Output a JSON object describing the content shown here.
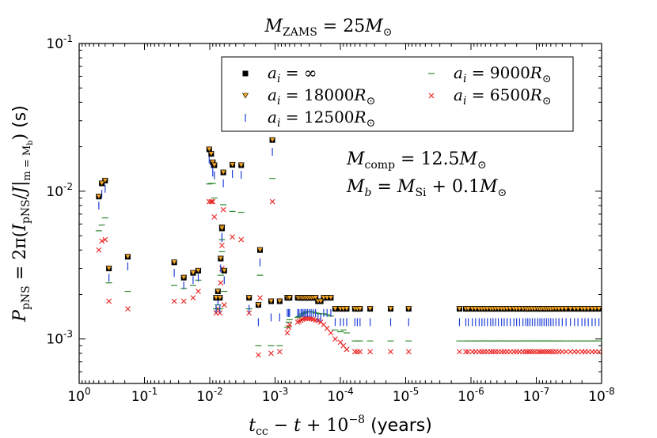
{
  "chart_data": {
    "type": "scatter",
    "title": "M_ZAMS = 25M_⊙",
    "xlabel": "t_cc − t + 10^−8 (years)",
    "ylabel": "P_pNS = 2π(I_pNS / J|_m=M_b) (s)",
    "xscale": "log-reversed",
    "yscale": "log",
    "xlim": [
      1,
      1e-08
    ],
    "ylim": [
      0.0005,
      0.1
    ],
    "x_tick_labels": [
      "10^0",
      "10^-1",
      "10^-2",
      "10^-3",
      "10^-4",
      "10^-5",
      "10^-6",
      "10^-7",
      "10^-8"
    ],
    "y_tick_labels": [
      "10^-3",
      "10^-2",
      "10^-1"
    ],
    "annotations": [
      "M_comp = 12.5M_⊙",
      "M_b = M_Si + 0.1M_⊙"
    ],
    "legend_position": "top-right",
    "x": [
      0.5,
      0.45,
      0.4,
      0.35,
      0.18,
      0.035,
      0.025,
      0.018,
      0.015,
      0.0065,
      0.0045,
      0.0033,
      0.0017,
      0.0011,
      0.0102,
      0.0095,
      0.009,
      0.0085,
      0.008,
      0.0075,
      0.007,
      0.0068,
      0.0065,
      0.0062,
      0.006,
      0.0025,
      0.0018,
      0.00115,
      0.00085,
      0.00065,
      0.00062,
      0.0006,
      0.00045,
      0.00043,
      0.0004,
      0.00038,
      0.00036,
      0.00034,
      0.00032,
      0.0003,
      0.00028,
      0.00026,
      0.00024,
      0.00022,
      0.0002,
      0.00018,
      0.00016,
      0.00014,
      0.00012,
      0.0001,
      9e-05,
      8e-05,
      6e-05,
      5.5e-05,
      5e-05,
      3.5e-05,
      1.7e-05,
      9e-06,
      1.5e-06,
      1.2e-06,
      1.1e-06,
      9.5e-07,
      8.5e-07,
      7.5e-07,
      6.8e-07,
      6.2e-07,
      5.6e-07,
      5e-07,
      4.6e-07,
      4.2e-07,
      3.8e-07,
      3.4e-07,
      3.1e-07,
      2.8e-07,
      2.5e-07,
      2.2e-07,
      2e-07,
      1.8e-07,
      1.6e-07,
      1.45e-07,
      1.35e-07,
      1.25e-07,
      1.15e-07,
      1.05e-07,
      9.5e-08,
      8.8e-08,
      8.2e-08,
      7.6e-08,
      7e-08,
      6.5e-08,
      6e-08,
      5.5e-08,
      5e-08,
      4.5e-08,
      4e-08,
      3.5e-08,
      3e-08,
      2.6e-08,
      2.3e-08,
      2e-08,
      1.8e-08,
      1.6e-08,
      1.4e-08,
      1.25e-08,
      1.1e-08
    ],
    "series": [
      {
        "name": "a_i = ∞",
        "marker": "square",
        "color": "#000000",
        "values": [
          0.0092,
          0.0113,
          0.0118,
          0.003,
          0.0036,
          0.0033,
          0.0026,
          0.0028,
          0.0029,
          0.0057,
          0.0151,
          0.015,
          0.004,
          0.0222,
          0.0192,
          0.0179,
          0.0157,
          0.015,
          0.0019,
          0.0021,
          0.0019,
          0.0035,
          0.0056,
          0.0134,
          0.0029,
          0.0019,
          0.0017,
          0.0018,
          0.0018,
          0.0019,
          0.0019,
          0.0019,
          0.0019,
          0.0019,
          0.0019,
          0.0019,
          0.0019,
          0.0019,
          0.0019,
          0.0019,
          0.0019,
          0.0019,
          0.0019,
          0.0018,
          0.0018,
          0.0019,
          0.0019,
          0.0019,
          0.0016,
          0.0016,
          0.0016,
          0.0016,
          0.0016,
          0.0016,
          0.0016,
          0.0016,
          0.0016,
          0.0016,
          0.0016,
          0.0016,
          0.0016,
          0.0016,
          0.0016,
          0.0016,
          0.0016,
          0.0016,
          0.0016,
          0.0016,
          0.0016,
          0.0016,
          0.0016,
          0.0016,
          0.0016,
          0.0016,
          0.0016,
          0.0016,
          0.0016,
          0.0016,
          0.0016,
          0.0016,
          0.0016,
          0.0016,
          0.0016,
          0.0016,
          0.0016,
          0.0016,
          0.0016,
          0.0016,
          0.0016,
          0.0016,
          0.0016,
          0.0016,
          0.0016,
          0.0016,
          0.0016,
          0.0016,
          0.0016,
          0.0016,
          0.0016,
          0.0016,
          0.0016,
          0.0016,
          0.0016,
          0.0016,
          0.0016
        ]
      },
      {
        "name": "a_i = 18000R_⊙",
        "marker": "triangle-down",
        "color": "#f5a623",
        "values": [
          0.0092,
          0.0113,
          0.0118,
          0.003,
          0.0036,
          0.0033,
          0.0026,
          0.0028,
          0.0029,
          0.0057,
          0.0151,
          0.015,
          0.004,
          0.0222,
          0.0192,
          0.0179,
          0.0157,
          0.015,
          0.0019,
          0.0021,
          0.0019,
          0.0035,
          0.0056,
          0.0134,
          0.0029,
          0.0019,
          0.0017,
          0.0018,
          0.0018,
          0.0019,
          0.0019,
          0.0019,
          0.0019,
          0.0019,
          0.0019,
          0.0019,
          0.0019,
          0.0019,
          0.0019,
          0.0019,
          0.0019,
          0.0019,
          0.0019,
          0.0018,
          0.0018,
          0.0019,
          0.0019,
          0.0019,
          0.0016,
          0.0016,
          0.0016,
          0.0016,
          0.0016,
          0.0016,
          0.0016,
          0.0016,
          0.0016,
          0.0016,
          0.0016,
          0.0016,
          0.0016,
          0.0016,
          0.0016,
          0.0016,
          0.0016,
          0.0016,
          0.0016,
          0.0016,
          0.0016,
          0.0016,
          0.0016,
          0.0016,
          0.0016,
          0.0016,
          0.0016,
          0.0016,
          0.0016,
          0.0016,
          0.0016,
          0.0016,
          0.0016,
          0.0016,
          0.0016,
          0.0016,
          0.0016,
          0.0016,
          0.0016,
          0.0016,
          0.0016,
          0.0016,
          0.0016,
          0.0016,
          0.0016,
          0.0016,
          0.0016,
          0.0016,
          0.0016,
          0.0016,
          0.0016,
          0.0016,
          0.0016,
          0.0016,
          0.0016,
          0.0016,
          0.0016
        ]
      },
      {
        "name": "a_i = 12500R_⊙",
        "marker": "vline",
        "color": "#1f3fd6",
        "values": [
          0.008,
          0.0096,
          0.0104,
          0.0026,
          0.0031,
          0.0028,
          0.0023,
          0.0025,
          0.0026,
          0.0049,
          0.0131,
          0.0129,
          0.0033,
          0.0185,
          0.0164,
          0.0152,
          0.0134,
          0.0128,
          0.0016,
          0.0018,
          0.0016,
          0.003,
          0.0048,
          0.0113,
          0.0025,
          0.0016,
          0.0013,
          0.0014,
          0.0014,
          0.0015,
          0.0015,
          0.0015,
          0.0015,
          0.0015,
          0.0015,
          0.0015,
          0.0015,
          0.0015,
          0.0015,
          0.0015,
          0.0015,
          0.0015,
          0.0015,
          0.0014,
          0.0014,
          0.0015,
          0.0015,
          0.0015,
          0.0013,
          0.0013,
          0.0013,
          0.0013,
          0.0013,
          0.0013,
          0.0013,
          0.0013,
          0.0013,
          0.0013,
          0.0013,
          0.0013,
          0.0013,
          0.0013,
          0.0013,
          0.0013,
          0.0013,
          0.0013,
          0.0013,
          0.0013,
          0.0013,
          0.0013,
          0.0013,
          0.0013,
          0.0013,
          0.0013,
          0.0013,
          0.0013,
          0.0013,
          0.0013,
          0.0013,
          0.0013,
          0.0013,
          0.0013,
          0.0013,
          0.0013,
          0.0013,
          0.0013,
          0.0013,
          0.0013,
          0.0013,
          0.0013,
          0.0013,
          0.0013,
          0.0013,
          0.0013,
          0.0013,
          0.0013,
          0.0013,
          0.0013,
          0.0013,
          0.0013,
          0.0013,
          0.0013,
          0.0013,
          0.0013,
          0.0013
        ]
      },
      {
        "name": "a_i = 9000R_⊙",
        "marker": "hline",
        "color": "#2e8b2e",
        "values": [
          0.0054,
          0.0059,
          0.0066,
          0.0024,
          0.0021,
          0.0023,
          0.0022,
          0.0023,
          0.0025,
          0.0047,
          0.0073,
          0.0072,
          0.0027,
          0.0122,
          0.0112,
          0.0113,
          0.0113,
          0.009,
          0.0016,
          0.0017,
          0.0016,
          0.0027,
          0.0039,
          0.0081,
          0.0021,
          0.0016,
          0.0009,
          0.0009,
          0.0009,
          0.0012,
          0.0013,
          0.00135,
          0.0014,
          0.00142,
          0.00145,
          0.00148,
          0.0015,
          0.00152,
          0.00153,
          0.00153,
          0.00153,
          0.00152,
          0.0015,
          0.00149,
          0.00148,
          0.00148,
          0.00146,
          0.00143,
          0.00115,
          0.00112,
          0.00115,
          0.0011,
          0.00097,
          0.00097,
          0.00097,
          0.00097,
          0.00097,
          0.00097,
          0.00097,
          0.00097,
          0.00097,
          0.00097,
          0.00097,
          0.00097,
          0.00097,
          0.00097,
          0.00097,
          0.00097,
          0.00097,
          0.00097,
          0.00097,
          0.00097,
          0.00097,
          0.00097,
          0.00097,
          0.00097,
          0.00097,
          0.00097,
          0.00097,
          0.00097,
          0.00097,
          0.00097,
          0.00097,
          0.00097,
          0.00097,
          0.00097,
          0.00097,
          0.00097,
          0.00097,
          0.00097,
          0.00097,
          0.00097,
          0.00097,
          0.00097,
          0.00097,
          0.00097,
          0.00097,
          0.00097,
          0.00097,
          0.00097,
          0.00097,
          0.00097,
          0.00097,
          0.00097,
          0.00097
        ]
      },
      {
        "name": "a_i = 6500R_⊙",
        "marker": "x",
        "color": "#e8201f",
        "values": [
          0.004,
          0.0046,
          0.0047,
          0.0018,
          0.0016,
          0.0018,
          0.0018,
          0.0019,
          0.0021,
          0.0043,
          0.0049,
          0.0047,
          0.0019,
          0.0085,
          0.0085,
          0.0085,
          0.0085,
          0.0067,
          0.0015,
          0.0016,
          0.0015,
          0.0024,
          0.003,
          0.0075,
          0.0017,
          0.0015,
          0.00078,
          0.0008,
          0.00082,
          0.0011,
          0.0012,
          0.00125,
          0.0013,
          0.00132,
          0.00134,
          0.00136,
          0.00138,
          0.00138,
          0.00138,
          0.00138,
          0.00137,
          0.00136,
          0.00134,
          0.00133,
          0.0013,
          0.00125,
          0.00118,
          0.0011,
          0.001,
          0.00095,
          0.0009,
          0.00085,
          0.00082,
          0.00082,
          0.00082,
          0.00082,
          0.00082,
          0.00082,
          0.00082,
          0.00082,
          0.00082,
          0.00082,
          0.00082,
          0.00082,
          0.00082,
          0.00082,
          0.00082,
          0.00082,
          0.00082,
          0.00082,
          0.00082,
          0.00082,
          0.00082,
          0.00082,
          0.00082,
          0.00082,
          0.00082,
          0.00082,
          0.00082,
          0.00082,
          0.00082,
          0.00082,
          0.00082,
          0.00082,
          0.00082,
          0.00082,
          0.00082,
          0.00082,
          0.00082,
          0.00082,
          0.00082,
          0.00082,
          0.00082,
          0.00082,
          0.00082,
          0.00082,
          0.00082,
          0.00082,
          0.00082,
          0.00082,
          0.00082,
          0.00082,
          0.00082,
          0.00082,
          0.00082
        ]
      }
    ]
  }
}
